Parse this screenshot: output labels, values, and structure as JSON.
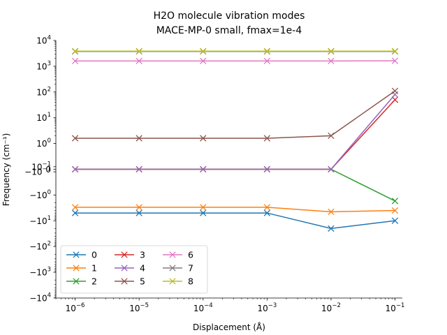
{
  "chart_data": {
    "type": "line",
    "title": "H2O molecule vibration modes",
    "subtitle": "MACE-MP-0 small, fmax=1e-4",
    "xlabel": "Displacement (Å)",
    "ylabel": "Frequency (cm⁻¹)",
    "x_scale": "log",
    "y_scale": "symlog",
    "symlog_linthresh": 1,
    "xlim": [
      5e-07,
      0.13
    ],
    "ylim": [
      -10000,
      10000
    ],
    "x": [
      1e-06,
      1e-05,
      0.0001,
      0.001,
      0.01,
      0.1
    ],
    "x_ticks": [
      {
        "value": 1e-06,
        "base": "10",
        "exp": "−6"
      },
      {
        "value": 1e-05,
        "base": "10",
        "exp": "−5"
      },
      {
        "value": 0.0001,
        "base": "10",
        "exp": "−4"
      },
      {
        "value": 0.001,
        "base": "10",
        "exp": "−3"
      },
      {
        "value": 0.01,
        "base": "10",
        "exp": "−2"
      },
      {
        "value": 0.1,
        "base": "10",
        "exp": "−1"
      }
    ],
    "y_ticks": [
      {
        "value": 10000,
        "base": "10",
        "exp": "4"
      },
      {
        "value": 1000,
        "base": "10",
        "exp": "3"
      },
      {
        "value": 100,
        "base": "10",
        "exp": "2"
      },
      {
        "value": 10,
        "base": "10",
        "exp": "1"
      },
      {
        "value": 1,
        "base": "10",
        "exp": "0"
      },
      {
        "value": 0.1,
        "base": "10",
        "exp": "−1"
      },
      {
        "value": 0,
        "base": "0",
        "exp": ""
      },
      {
        "value": -0.1,
        "base": "−10",
        "exp": "−1"
      },
      {
        "value": -1,
        "base": "−10",
        "exp": "0"
      },
      {
        "value": -10,
        "base": "−10",
        "exp": "1"
      },
      {
        "value": -100,
        "base": "−10",
        "exp": "2"
      },
      {
        "value": -1000,
        "base": "−10",
        "exp": "3"
      },
      {
        "value": -10000,
        "base": "−10",
        "exp": "4"
      }
    ],
    "grid": false,
    "legend": {
      "position": "lower-left",
      "columns": 3
    },
    "marker": "x",
    "series": [
      {
        "name": "0",
        "color": "#1f77b4",
        "values": [
          -5,
          -5,
          -5,
          -5,
          -20,
          -10
        ]
      },
      {
        "name": "1",
        "color": "#ff7f0e",
        "values": [
          -3,
          -3,
          -3,
          -3,
          -4.5,
          -4
        ]
      },
      {
        "name": "2",
        "color": "#2ca02c",
        "values": [
          0,
          0,
          0,
          0,
          0,
          -1.7
        ]
      },
      {
        "name": "3",
        "color": "#d62728",
        "values": [
          0,
          0,
          0,
          0,
          0,
          50
        ]
      },
      {
        "name": "4",
        "color": "#9467bd",
        "values": [
          0,
          0,
          0,
          0,
          0,
          80
        ]
      },
      {
        "name": "5",
        "color": "#8c564b",
        "values": [
          1.6,
          1.6,
          1.6,
          1.6,
          2,
          110
        ]
      },
      {
        "name": "6",
        "color": "#e377c2",
        "values": [
          1600,
          1600,
          1600,
          1600,
          1600,
          1620
        ]
      },
      {
        "name": "7",
        "color": "#7f7f7f",
        "values": [
          3750,
          3750,
          3750,
          3750,
          3750,
          3750
        ]
      },
      {
        "name": "8",
        "color": "#bcbd22",
        "values": [
          3850,
          3850,
          3850,
          3850,
          3850,
          3850
        ]
      }
    ]
  }
}
